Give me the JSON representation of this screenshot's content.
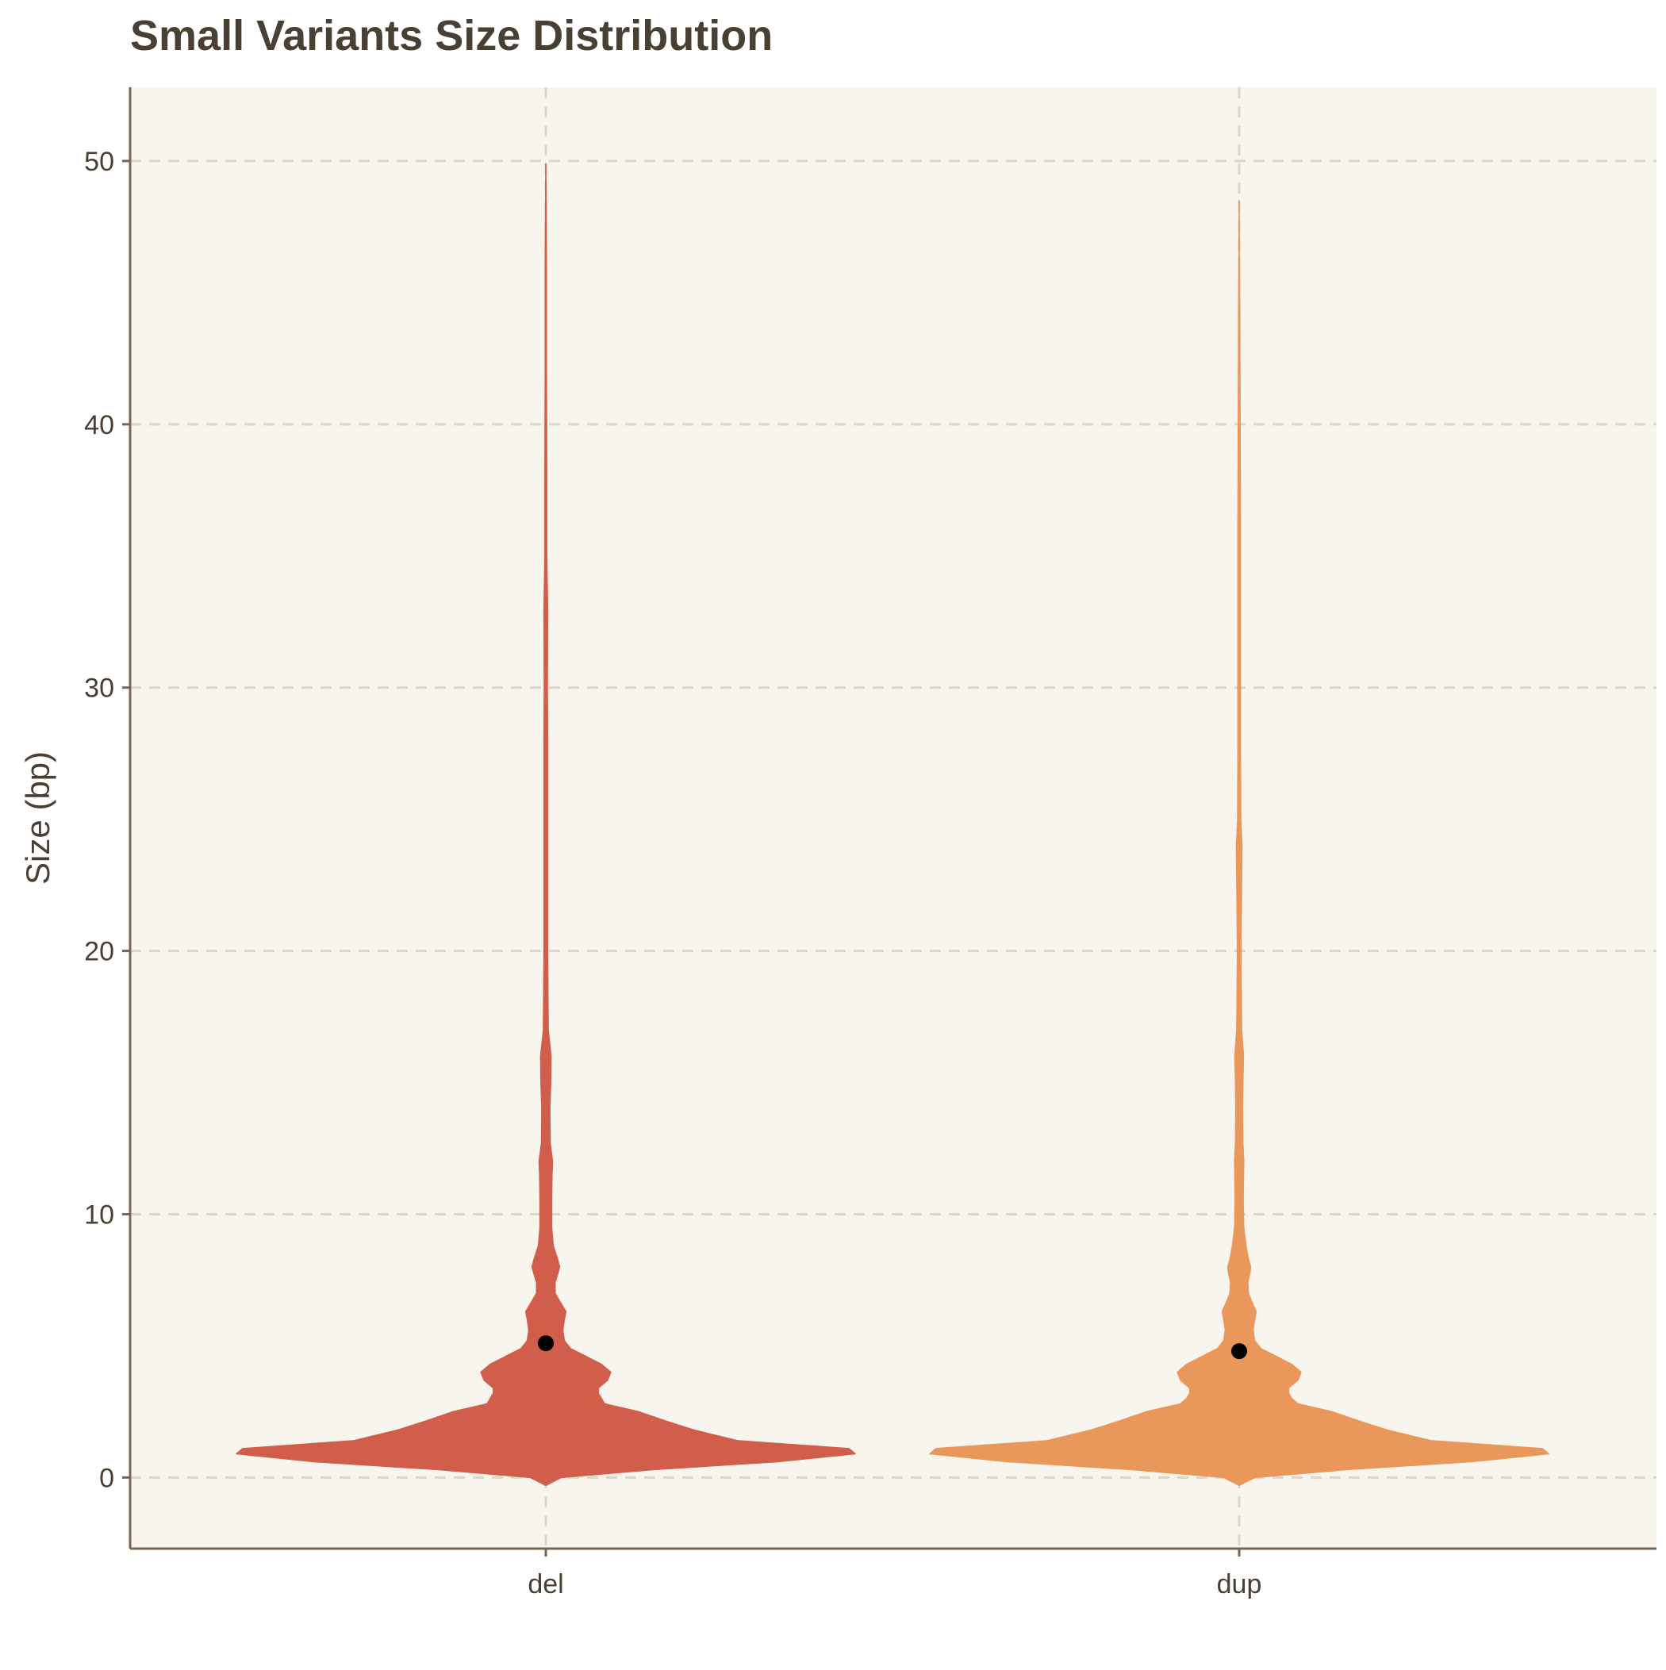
{
  "chart_data": {
    "type": "violin",
    "title": "Small Variants Size Distribution",
    "xlabel": "",
    "ylabel": "Size (bp)",
    "ylim": [
      -2.7,
      52.8
    ],
    "yticks": [
      0,
      10,
      20,
      30,
      40,
      50
    ],
    "grid": "dashed",
    "legend": "none",
    "colors": {
      "panel_background": "#f8f5ee",
      "grid": "#ddd6c4",
      "axis": "#7a6650",
      "text": "#4a3f33",
      "title": "#4a3f33",
      "mean_point": "#000000"
    },
    "categories": [
      "del",
      "dup"
    ],
    "series": [
      {
        "category": "del",
        "color": "#d05e4a",
        "mean": 5.1,
        "min": -0.3,
        "max": 49.9,
        "density": [
          [
            -0.3,
            0.0
          ],
          [
            0.0,
            0.05
          ],
          [
            0.3,
            0.35
          ],
          [
            0.6,
            0.75
          ],
          [
            0.9,
            1.0
          ],
          [
            1.1,
            0.98
          ],
          [
            1.4,
            0.62
          ],
          [
            1.8,
            0.48
          ],
          [
            2.1,
            0.4
          ],
          [
            2.5,
            0.3
          ],
          [
            2.8,
            0.19
          ],
          [
            3.0,
            0.18
          ],
          [
            3.2,
            0.17
          ],
          [
            3.4,
            0.17
          ],
          [
            3.7,
            0.2
          ],
          [
            4.0,
            0.21
          ],
          [
            4.3,
            0.18
          ],
          [
            4.6,
            0.13
          ],
          [
            4.9,
            0.08
          ],
          [
            5.2,
            0.06
          ],
          [
            5.6,
            0.055
          ],
          [
            6.0,
            0.06
          ],
          [
            6.3,
            0.065
          ],
          [
            6.7,
            0.045
          ],
          [
            7.0,
            0.03
          ],
          [
            7.4,
            0.03
          ],
          [
            7.8,
            0.04
          ],
          [
            8.0,
            0.045
          ],
          [
            8.3,
            0.038
          ],
          [
            8.8,
            0.024
          ],
          [
            9.5,
            0.019
          ],
          [
            10.5,
            0.019
          ],
          [
            11.5,
            0.02
          ],
          [
            12.0,
            0.022
          ],
          [
            12.7,
            0.014
          ],
          [
            14.0,
            0.013
          ],
          [
            15.0,
            0.016
          ],
          [
            16.0,
            0.017
          ],
          [
            17.0,
            0.008
          ],
          [
            20.0,
            0.006
          ],
          [
            24.0,
            0.006
          ],
          [
            28.0,
            0.006
          ],
          [
            30.0,
            0.005
          ],
          [
            33.0,
            0.006
          ],
          [
            35.0,
            0.003
          ],
          [
            38.0,
            0.003
          ],
          [
            42.0,
            0.002
          ],
          [
            46.0,
            0.002
          ],
          [
            49.9,
            0.0
          ]
        ]
      },
      {
        "category": "dup",
        "color": "#e9975b",
        "mean": 4.8,
        "min": -0.3,
        "max": 48.5,
        "density": [
          [
            -0.3,
            0.0
          ],
          [
            0.0,
            0.05
          ],
          [
            0.3,
            0.35
          ],
          [
            0.6,
            0.75
          ],
          [
            0.9,
            1.0
          ],
          [
            1.1,
            0.98
          ],
          [
            1.4,
            0.62
          ],
          [
            1.8,
            0.48
          ],
          [
            2.1,
            0.4
          ],
          [
            2.5,
            0.3
          ],
          [
            2.8,
            0.19
          ],
          [
            3.0,
            0.17
          ],
          [
            3.2,
            0.16
          ],
          [
            3.4,
            0.16
          ],
          [
            3.7,
            0.19
          ],
          [
            4.0,
            0.2
          ],
          [
            4.3,
            0.17
          ],
          [
            4.6,
            0.12
          ],
          [
            4.9,
            0.07
          ],
          [
            5.2,
            0.05
          ],
          [
            5.6,
            0.045
          ],
          [
            6.0,
            0.05
          ],
          [
            6.3,
            0.055
          ],
          [
            6.7,
            0.04
          ],
          [
            7.0,
            0.03
          ],
          [
            7.4,
            0.028
          ],
          [
            7.8,
            0.035
          ],
          [
            8.0,
            0.037
          ],
          [
            8.3,
            0.03
          ],
          [
            8.8,
            0.022
          ],
          [
            9.5,
            0.015
          ],
          [
            10.5,
            0.013
          ],
          [
            11.5,
            0.014
          ],
          [
            12.0,
            0.015
          ],
          [
            12.7,
            0.012
          ],
          [
            14.0,
            0.011
          ],
          [
            15.0,
            0.012
          ],
          [
            16.0,
            0.014
          ],
          [
            17.0,
            0.008
          ],
          [
            20.0,
            0.006
          ],
          [
            24.0,
            0.009
          ],
          [
            25.0,
            0.005
          ],
          [
            28.0,
            0.004
          ],
          [
            32.0,
            0.004
          ],
          [
            36.0,
            0.004
          ],
          [
            40.0,
            0.003
          ],
          [
            44.0,
            0.002
          ],
          [
            48.5,
            0.0
          ]
        ]
      }
    ]
  }
}
